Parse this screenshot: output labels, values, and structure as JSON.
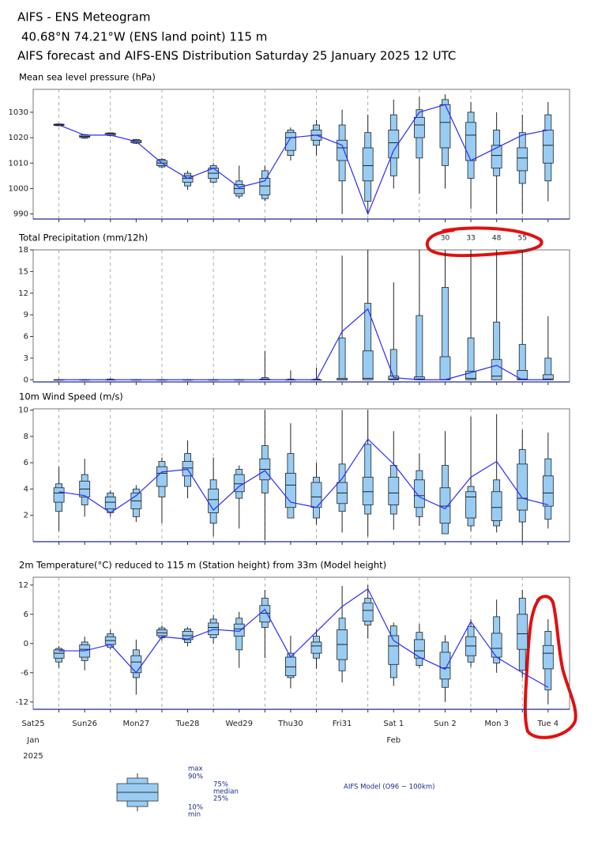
{
  "header": {
    "title": "AIFS - ENS Meteogram",
    "location": "40.68°N 74.21°W (ENS land point) 115 m",
    "run": "AIFS forecast and AIFS-ENS Distribution Saturday 25 January 2025 12 UTC"
  },
  "quantiles": [
    "max",
    "90%",
    "75%",
    "median",
    "25%",
    "10%",
    "min"
  ],
  "forecast_line": {
    "name": "AIFS Model (O96 ~ 100km)",
    "color": "#2b2bff"
  },
  "box_color": "#99ccf2",
  "time_axis": {
    "x": [
      12,
      24,
      36,
      48,
      60,
      72,
      84,
      96,
      108,
      120,
      132,
      144,
      156,
      168,
      180,
      192,
      204,
      216,
      228,
      240
    ],
    "xlim": [
      0,
      250
    ],
    "xticks": [
      {
        "value": 0,
        "label": "Sat25"
      },
      {
        "value": 24,
        "label": "Sun26"
      },
      {
        "value": 48,
        "label": "Mon27"
      },
      {
        "value": 72,
        "label": "Tue28"
      },
      {
        "value": 96,
        "label": "Wed29"
      },
      {
        "value": 120,
        "label": "Thu30"
      },
      {
        "value": 144,
        "label": "Fri31"
      },
      {
        "value": 168,
        "label": "Sat 1"
      },
      {
        "value": 192,
        "label": "Sun 2"
      },
      {
        "value": 216,
        "label": "Mon 3"
      },
      {
        "value": 240,
        "label": "Tue 4"
      }
    ],
    "xtick_colors": [
      "#1c2a8a",
      "#e02020",
      "#1c2a8a",
      "#1c2a8a",
      "#1c2a8a",
      "#1c2a8a",
      "#1c2a8a",
      "#1c2a8a",
      "#e02020",
      "#1c2a8a",
      "#1c2a8a"
    ],
    "months": [
      {
        "value": 0,
        "label": "Jan"
      },
      {
        "value": 168,
        "label": "Feb"
      }
    ],
    "year": {
      "value": 0,
      "label": "2025"
    },
    "xgrid": [
      12,
      36,
      60,
      84,
      108,
      132,
      156,
      180,
      204,
      228
    ]
  },
  "chart_data": [
    {
      "type": "boxplot",
      "title": "Mean sea level pressure (hPa)",
      "ylim": [
        988,
        1039
      ],
      "yticks": [
        990,
        1000,
        1010,
        1020,
        1030
      ],
      "stats": [
        [
          1025.5,
          1021.5,
          1022,
          1019.5,
          1012,
          1007,
          1010,
          1009,
          1009,
          1024,
          1027,
          1031,
          1029,
          1035,
          1036,
          1037,
          1034,
          1030,
          1029,
          1034
        ],
        [
          1025.4,
          1021.2,
          1021.9,
          1019.3,
          1011.5,
          1006,
          1009,
          1003,
          1007,
          1023,
          1025,
          1025,
          1022,
          1029,
          1031,
          1035,
          1030,
          1023,
          1022,
          1029
        ],
        [
          1025.3,
          1021,
          1021.7,
          1019,
          1011,
          1005,
          1008,
          1001.5,
          1004,
          1022,
          1023,
          1019,
          1016,
          1023,
          1028,
          1033,
          1026,
          1017,
          1016,
          1023
        ],
        [
          1025,
          1020.5,
          1021.5,
          1018.5,
          1010,
          1004,
          1006,
          1000,
          1001,
          1020,
          1021,
          1016,
          1009,
          1018,
          1025,
          1026,
          1021,
          1013,
          1012,
          1017
        ],
        [
          1024.8,
          1020.1,
          1021,
          1018,
          1009,
          1002.5,
          1004,
          998,
          997.5,
          1015,
          1019,
          1011,
          1003,
          1012,
          1020,
          1016,
          1011,
          1008,
          1007,
          1010
        ],
        [
          1024.7,
          1019.8,
          1020.8,
          1017.8,
          1008.5,
          1001,
          1002.5,
          997,
          996,
          1013,
          1017,
          1003,
          995,
          1005,
          1012,
          1009,
          1004,
          1005,
          1002,
          1003
        ],
        [
          1024.5,
          1019.5,
          1020.5,
          1017.5,
          1008,
          999.5,
          1002,
          996,
          995,
          1011,
          1013,
          990,
          990,
          1000,
          998,
          1000,
          992,
          990,
          990,
          995
        ]
      ],
      "forecast": [
        1025,
        1021,
        1021,
        1018.5,
        1010,
        1004,
        1008,
        1000.5,
        1003,
        1020,
        1021,
        1017,
        990,
        1015,
        1030,
        1033,
        1011,
        1016,
        1021,
        1023
      ]
    },
    {
      "type": "boxplot",
      "title": "Total Precipitation (mm/12h)",
      "ylim": [
        -0.3,
        18
      ],
      "yticks": [
        0,
        3,
        6,
        9,
        12,
        15,
        18
      ],
      "overflow_color": "#e02020",
      "stats": [
        [
          0.1,
          0.1,
          0.2,
          0.1,
          0.1,
          0.1,
          0.1,
          0.1,
          4,
          1.3,
          1.7,
          17.2,
          18,
          13.5,
          18,
          30,
          33,
          48,
          55,
          8.8
        ],
        [
          0,
          0,
          0.1,
          0,
          0,
          0,
          0,
          0,
          0.3,
          0.1,
          0.1,
          5.8,
          10.6,
          4.2,
          8.9,
          12.8,
          5.8,
          8,
          4.9,
          3
        ],
        [
          0,
          0,
          0,
          0,
          0,
          0,
          0,
          0,
          0.1,
          0,
          0,
          0.2,
          4,
          0.5,
          0.4,
          3.2,
          1.2,
          2.8,
          1.3,
          0.7
        ],
        [
          0,
          0,
          0,
          0,
          0,
          0,
          0,
          0,
          0,
          0,
          0,
          0,
          0.2,
          0.1,
          0.1,
          0,
          0.2,
          0.5,
          0.1,
          0.1
        ],
        [
          0,
          0,
          0,
          0,
          0,
          0,
          0,
          0,
          0,
          0,
          0,
          0,
          0,
          0,
          0,
          0,
          0,
          0,
          0,
          0
        ],
        [
          0,
          0,
          0,
          0,
          0,
          0,
          0,
          0,
          0,
          0,
          0,
          0,
          0,
          0,
          0,
          0,
          0,
          0,
          0,
          0
        ],
        [
          0,
          0,
          0,
          0,
          0,
          0,
          0,
          0,
          0,
          0,
          0,
          0,
          0,
          0,
          0,
          0,
          0,
          0,
          0,
          0
        ]
      ],
      "forecast": [
        0,
        0,
        0,
        0,
        0,
        0,
        0,
        0,
        0,
        0,
        0,
        6.7,
        9.8,
        0.3,
        0,
        0,
        1,
        2,
        0,
        0
      ]
    },
    {
      "type": "boxplot",
      "title": "10m Wind Speed (m/s)",
      "ylim": [
        0,
        10.1
      ],
      "yticks": [
        2,
        4,
        6,
        8,
        10
      ],
      "stats": [
        [
          5.7,
          6.3,
          3.9,
          4.3,
          6.4,
          7.7,
          6.4,
          5.8,
          10,
          9,
          6,
          10,
          10,
          8.4,
          6.7,
          8.4,
          9.5,
          9.7,
          8.5,
          8.3
        ],
        [
          4.4,
          5.1,
          3.7,
          4,
          6.1,
          6.7,
          4.7,
          5.5,
          7.3,
          6.7,
          4.9,
          5.9,
          7.4,
          5.8,
          5.4,
          5.8,
          4.2,
          4.7,
          7,
          6.3
        ],
        [
          4.1,
          4.6,
          3.4,
          3.7,
          5.7,
          6.1,
          4,
          5.1,
          6.3,
          5.2,
          4.5,
          4.5,
          4.9,
          4.9,
          4.7,
          4.1,
          3.8,
          3.8,
          5.9,
          5
        ],
        [
          3.7,
          4,
          3,
          3.1,
          5.2,
          5.6,
          3.2,
          4.4,
          5.5,
          4.3,
          3.4,
          3.7,
          3.8,
          3.7,
          3.5,
          2.7,
          3.4,
          2.6,
          3.3,
          3.7
        ],
        [
          3,
          3.4,
          2.5,
          2.5,
          4.2,
          5,
          2.2,
          3.8,
          4.7,
          2.6,
          2.6,
          2.9,
          2.8,
          2.8,
          2.6,
          1.4,
          1.8,
          1.6,
          2.4,
          2.7
        ],
        [
          2.3,
          2.8,
          2.2,
          1.9,
          3.4,
          4.2,
          1.4,
          3.3,
          3.7,
          1.8,
          1.8,
          2.3,
          2.1,
          2.1,
          1.9,
          0.6,
          1.2,
          1.2,
          1.5,
          1.7
        ],
        [
          0.8,
          1.9,
          1.9,
          1.5,
          1.4,
          3.3,
          0.4,
          1,
          0.1,
          1.8,
          1.3,
          0.7,
          0.4,
          0.9,
          1.2,
          0.6,
          0.8,
          0.7,
          0,
          1
        ]
      ],
      "forecast": [
        3.8,
        3.5,
        2.2,
        3.5,
        5.3,
        5.5,
        2.4,
        4.2,
        5.4,
        3,
        2.6,
        4.8,
        7.8,
        5.9,
        3.4,
        2.5,
        4.9,
        6.1,
        3.3,
        2.8
      ]
    },
    {
      "type": "boxplot",
      "title": "2m Temperature(°C) reduced to 115 m (Station height) from 33m (Model height)",
      "ylim": [
        -13.5,
        13.6
      ],
      "yticks": [
        -12,
        -6,
        0,
        6,
        12
      ],
      "stats": [
        [
          -0.5,
          1.4,
          2.8,
          0.8,
          3.7,
          3.4,
          5.9,
          6.5,
          11,
          1.6,
          2.9,
          11.8,
          12,
          4.3,
          4,
          1.7,
          5,
          9,
          11,
          5
        ],
        [
          -1,
          0.3,
          2,
          -1.3,
          3.2,
          3,
          5,
          5.2,
          9.3,
          -2,
          1.5,
          5.2,
          9.3,
          3.6,
          2.3,
          0.3,
          3.5,
          5.5,
          9.3,
          2.5
        ],
        [
          -1.3,
          -0.3,
          1.4,
          -2.5,
          2.8,
          2.5,
          4.2,
          4,
          7.8,
          -2.8,
          0.3,
          2.8,
          8.3,
          1.6,
          0.8,
          -1.8,
          1.4,
          2.1,
          6,
          -0.4
        ],
        [
          -2,
          -1.2,
          0.6,
          -3.8,
          2.2,
          1.6,
          3.3,
          3,
          6.2,
          -4.8,
          -0.5,
          -0.2,
          6.8,
          -0.5,
          -1.5,
          -5,
          -0.5,
          -1,
          2,
          -2
        ],
        [
          -3,
          -2.8,
          -0.2,
          -6,
          1.6,
          0.8,
          1.8,
          1.5,
          4.4,
          -6.6,
          -2,
          -3.3,
          4.6,
          -4.3,
          -3,
          -7.3,
          -2.5,
          -2.8,
          -1.2,
          -5.2
        ],
        [
          -3.8,
          -3.5,
          -0.8,
          -7,
          1.2,
          0.2,
          1.2,
          -1.3,
          3.3,
          -7,
          -3,
          -5.6,
          3.8,
          -7,
          -4.5,
          -9,
          -3.8,
          -4,
          -5.5,
          -9.5
        ],
        [
          -5,
          -5.5,
          -1.2,
          -10.5,
          0.6,
          -0.6,
          0,
          -5,
          -3,
          -9.2,
          -5.2,
          -8,
          1,
          -8.7,
          -5,
          -12,
          -4.8,
          -6,
          -7,
          -12.5
        ]
      ],
      "forecast": [
        -1.5,
        -1.5,
        -0.2,
        -6,
        1.4,
        0.9,
        2.9,
        2.5,
        7,
        -2.8,
        2.4,
        7.6,
        11.2,
        0.6,
        -2.8,
        -5.3,
        4.5,
        -2.8,
        -6,
        -9
      ]
    }
  ]
}
